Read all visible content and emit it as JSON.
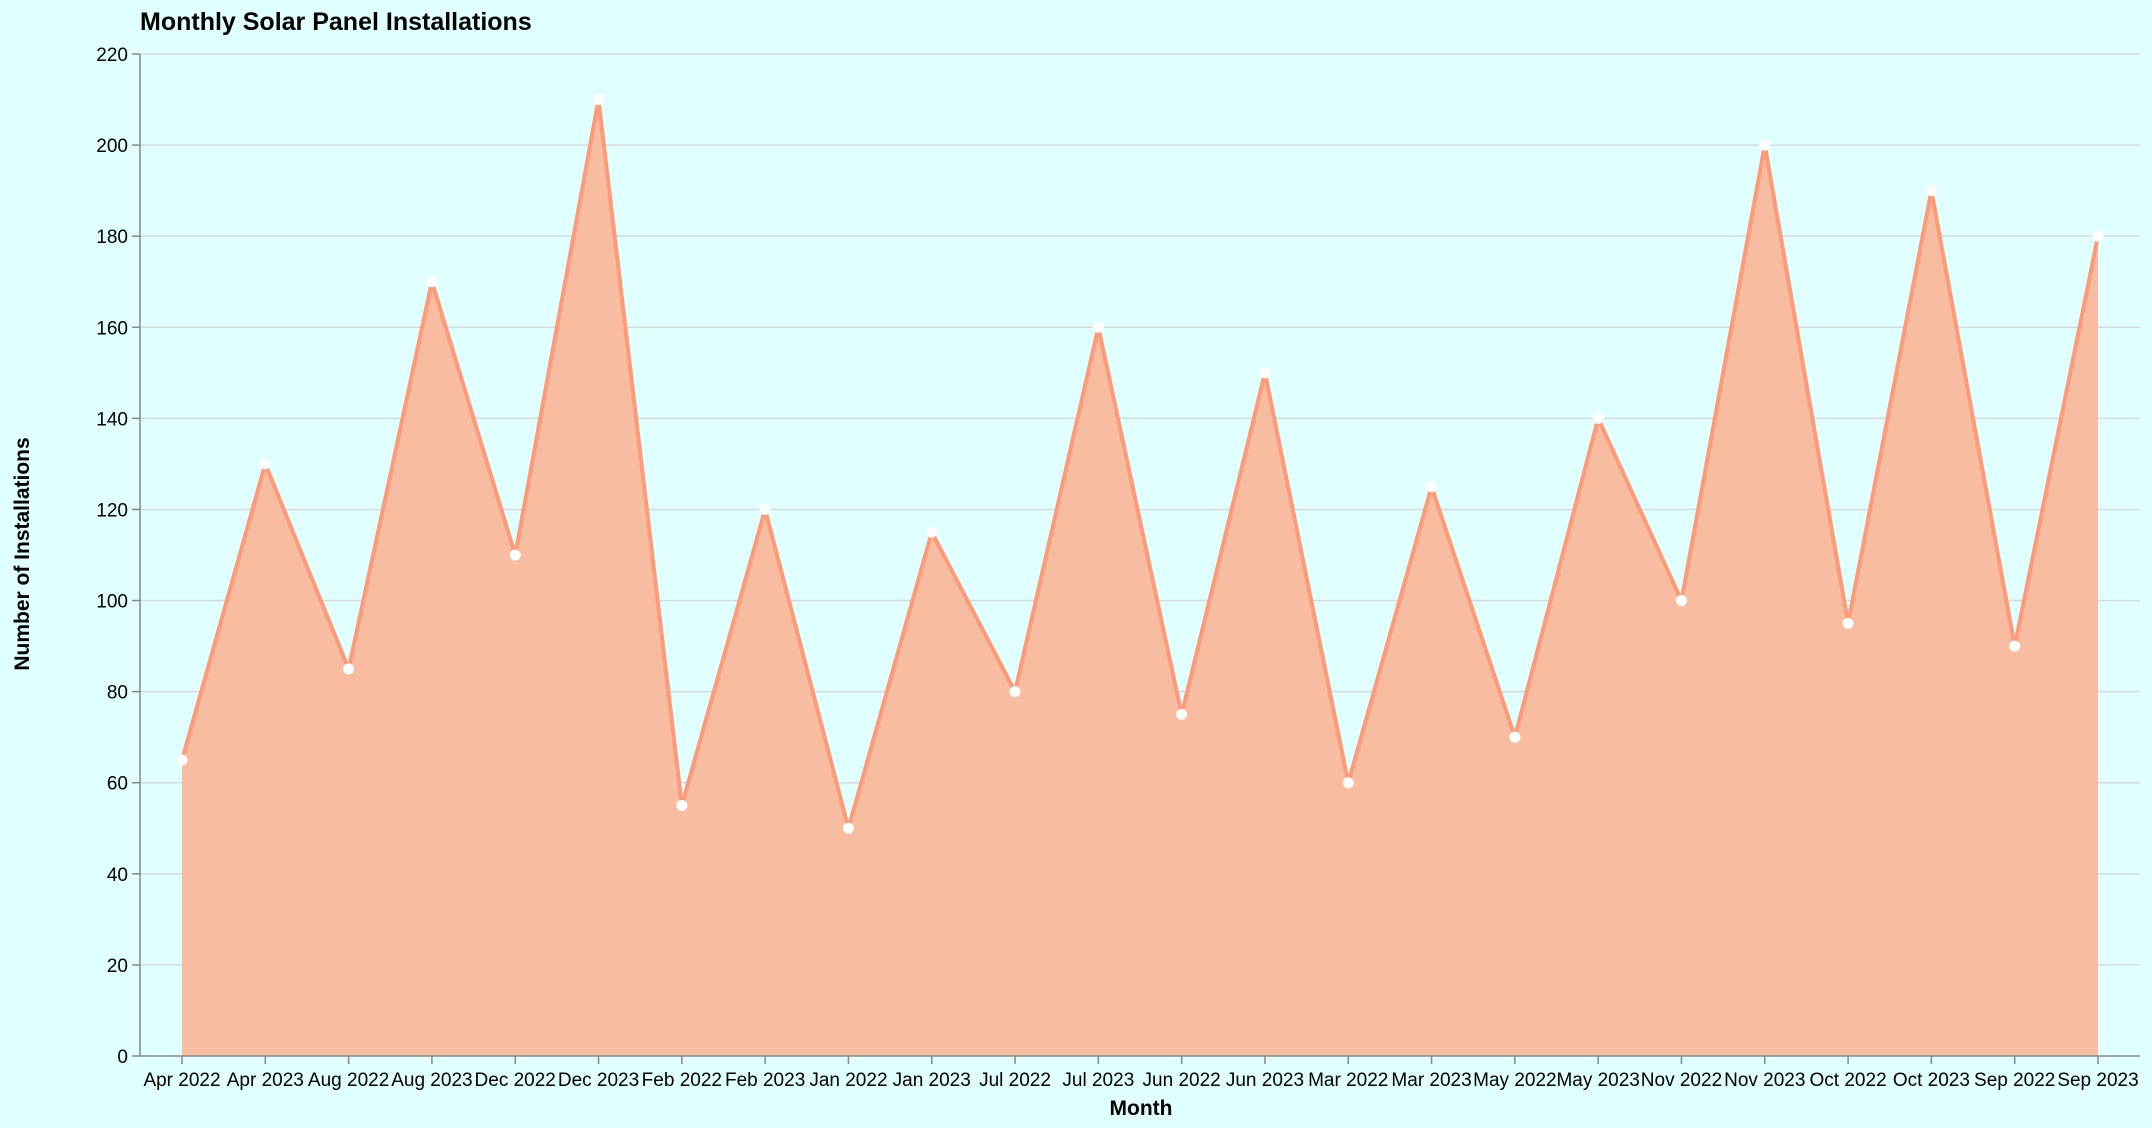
{
  "chart_data": {
    "type": "area",
    "title": "Monthly Solar Panel Installations",
    "xlabel": "Month",
    "ylabel": "Number of Installations",
    "ylim": [
      0,
      220
    ],
    "yticks": [
      0,
      20,
      40,
      60,
      80,
      100,
      120,
      140,
      160,
      180,
      200,
      220
    ],
    "grid": true,
    "colors": {
      "fill": "#f8bca0",
      "line": "#fc9a7a",
      "point": "#ffffff",
      "background": "#e0ffff"
    },
    "categories": [
      "Apr 2022",
      "Apr 2023",
      "Aug 2022",
      "Aug 2023",
      "Dec 2022",
      "Dec 2023",
      "Feb 2022",
      "Feb 2023",
      "Jan 2022",
      "Jan 2023",
      "Jul 2022",
      "Jul 2023",
      "Jun 2022",
      "Jun 2023",
      "Mar 2022",
      "Mar 2023",
      "May 2022",
      "May 2023",
      "Nov 2022",
      "Nov 2023",
      "Oct 2022",
      "Oct 2023",
      "Sep 2022",
      "Sep 2023"
    ],
    "values": [
      65,
      130,
      85,
      170,
      110,
      210,
      55,
      120,
      50,
      115,
      80,
      160,
      75,
      150,
      60,
      125,
      70,
      140,
      100,
      200,
      95,
      190,
      90,
      180
    ]
  }
}
